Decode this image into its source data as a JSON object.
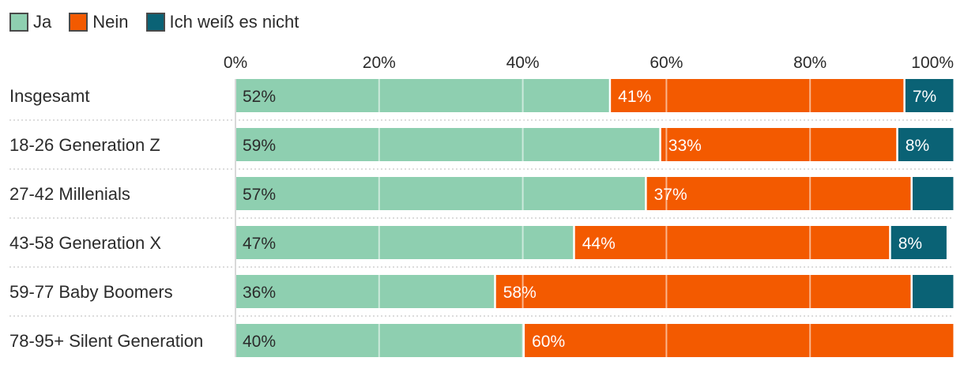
{
  "chart_data": {
    "type": "bar",
    "orientation": "horizontal",
    "stacked": true,
    "title": "",
    "xlabel": "",
    "ylabel": "",
    "xlim": [
      0,
      100
    ],
    "ticks": [
      "0%",
      "20%",
      "40%",
      "60%",
      "80%",
      "100%"
    ],
    "tick_values": [
      0,
      20,
      40,
      60,
      80,
      100
    ],
    "grid": true,
    "legend": "top-left",
    "categories": [
      "Insgesamt",
      "18-26 Generation Z",
      "27-42 Millenials",
      "43-58 Generation X",
      "59-77 Baby Boomers",
      "78-95+ Silent Generation"
    ],
    "series": [
      {
        "name": "Ja",
        "color": "#8ecfb0",
        "label_color": "#2b2b2b",
        "values": [
          52,
          59,
          57,
          47,
          36,
          40
        ],
        "labels": [
          "52%",
          "59%",
          "57%",
          "47%",
          "36%",
          "40%"
        ]
      },
      {
        "name": "Nein",
        "color": "#f35a00",
        "label_color": "#ffffff",
        "values": [
          41,
          33,
          37,
          44,
          58,
          60
        ],
        "labels": [
          "41%",
          "33%",
          "37%",
          "44%",
          "58%",
          "60%"
        ]
      },
      {
        "name": "Ich weiß es nicht",
        "color": "#0a6275",
        "label_color": "#ffffff",
        "values": [
          7,
          8,
          6,
          8,
          6,
          0
        ],
        "labels": [
          "7%",
          "8%",
          "",
          "8%",
          "",
          ""
        ]
      }
    ]
  }
}
